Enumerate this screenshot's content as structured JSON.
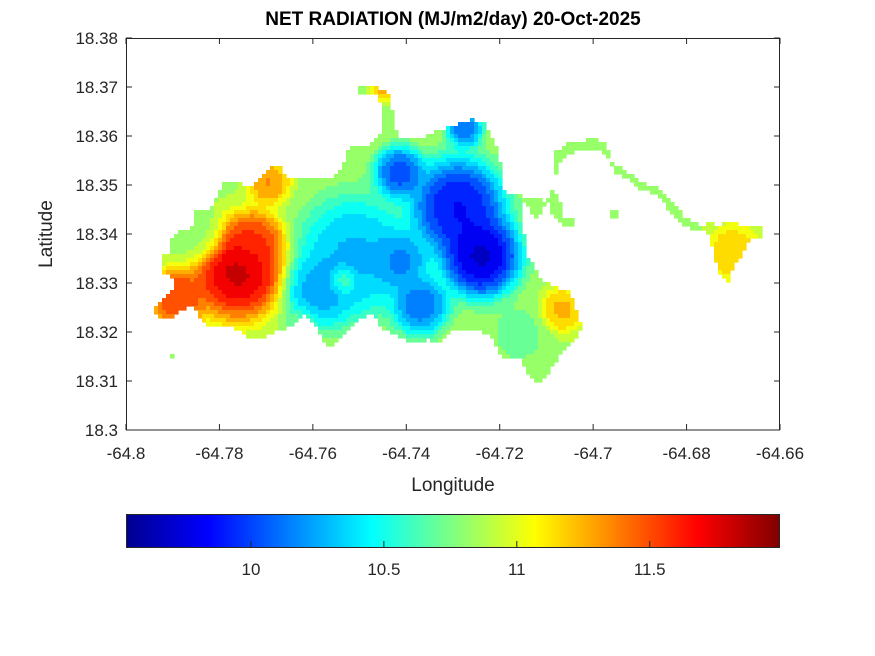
{
  "chart_data": {
    "type": "heatmap",
    "title": "NET RADIATION (MJ/m2/day) 20-Oct-2025",
    "xlabel": "Longitude",
    "ylabel": "Latitude",
    "xlim": [
      -64.8,
      -64.66
    ],
    "ylim": [
      18.3,
      18.38
    ],
    "xticks": [
      -64.8,
      -64.78,
      -64.76,
      -64.74,
      -64.72,
      -64.7,
      -64.68,
      -64.66
    ],
    "xtick_labels": [
      "-64.8",
      "-64.78",
      "-64.76",
      "-64.74",
      "-64.72",
      "-64.7",
      "-64.68",
      "-64.66"
    ],
    "yticks": [
      18.3,
      18.31,
      18.32,
      18.33,
      18.34,
      18.35,
      18.36,
      18.37,
      18.38
    ],
    "ytick_labels": [
      "18.3",
      "18.31",
      "18.32",
      "18.33",
      "18.34",
      "18.35",
      "18.36",
      "18.37",
      "18.38"
    ],
    "grid": false,
    "colormap": "jet",
    "colorbar": {
      "orientation": "horizontal",
      "placement": "bottom",
      "clim": [
        9.53,
        11.99
      ],
      "ticks": [
        10,
        10.5,
        11,
        11.5
      ],
      "tick_labels": [
        "10",
        "10.5",
        "11",
        "11.5"
      ]
    },
    "features": [
      {
        "name": "maximum",
        "lon": -64.776,
        "lat": 18.3325,
        "value": 11.95
      },
      {
        "name": "secondary high",
        "lon": -64.789,
        "lat": 18.327,
        "value": 11.7
      },
      {
        "name": "minimum",
        "lon": -64.724,
        "lat": 18.3355,
        "value": 9.55
      },
      {
        "name": "low",
        "lon": -64.729,
        "lat": 18.3455,
        "value": 9.75
      },
      {
        "name": "low",
        "lon": -64.7415,
        "lat": 18.3525,
        "value": 9.9
      },
      {
        "name": "low",
        "lon": -64.7275,
        "lat": 18.3615,
        "value": 10.0
      },
      {
        "name": "local high",
        "lon": -64.7535,
        "lat": 18.3305,
        "value": 10.85
      },
      {
        "name": "east coast high",
        "lon": -64.7065,
        "lat": 18.3245,
        "value": 11.3
      },
      {
        "name": "east tip",
        "lon": -64.67,
        "lat": 18.336,
        "value": 11.25
      }
    ]
  }
}
